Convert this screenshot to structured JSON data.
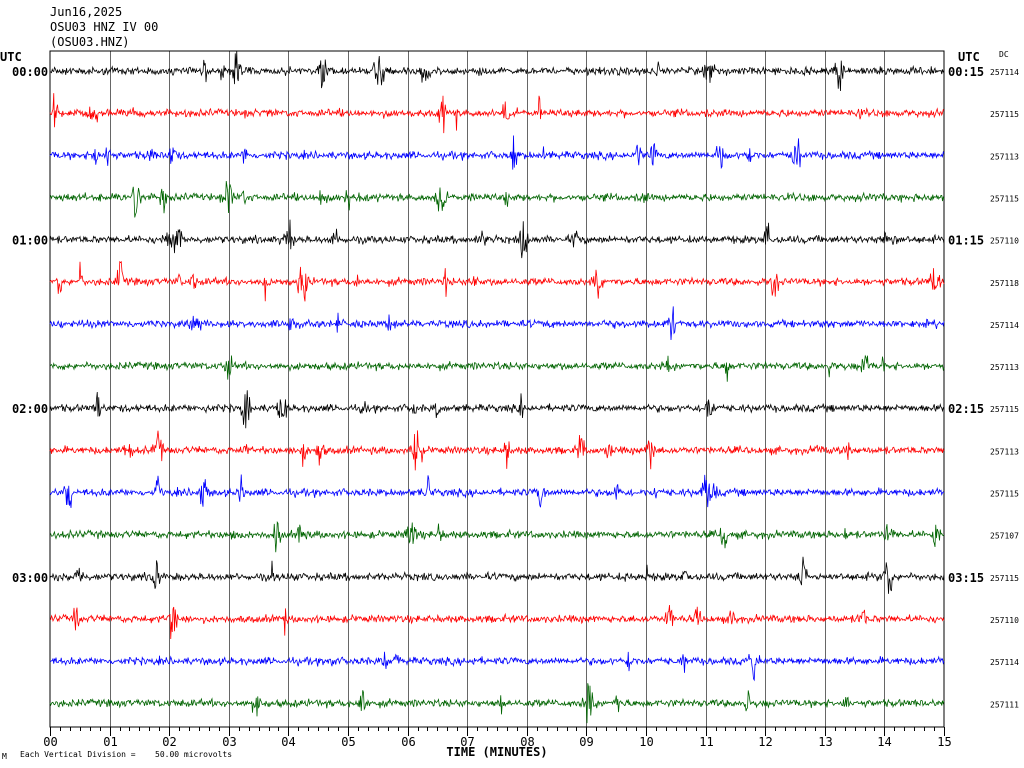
{
  "header": {
    "date": "Jun16,2025",
    "station": "OSU03 HNZ IV 00",
    "channel": "(OSU03.HNZ)"
  },
  "utc_left_label": "UTC",
  "utc_right_label": "UTC",
  "dc_label": "DC",
  "footer": {
    "mark": "M",
    "scale_text": "Each Vertical Division =",
    "scale_value": "50.00 microvolts"
  },
  "colors": {
    "palette": [
      "#000000",
      "#ff0000",
      "#0000ff",
      "#006400"
    ],
    "grid": "#000000"
  },
  "chart_data": {
    "type": "line",
    "title": "",
    "xlabel": "TIME (MINUTES)",
    "ylabel": "",
    "xlim": [
      0,
      15
    ],
    "x_ticks": [
      "00",
      "01",
      "02",
      "03",
      "04",
      "05",
      "06",
      "07",
      "08",
      "09",
      "10",
      "11",
      "12",
      "13",
      "14",
      "15"
    ],
    "grid": true,
    "left_time_labels": [
      "00:00",
      "01:00",
      "02:00",
      "03:00"
    ],
    "right_time_labels": [
      "00:15",
      "01:15",
      "02:15",
      "03:15"
    ],
    "series": [
      {
        "dc": "257114"
      },
      {
        "dc": "257115"
      },
      {
        "dc": "257113"
      },
      {
        "dc": "257115"
      },
      {
        "dc": "257110"
      },
      {
        "dc": "257118"
      },
      {
        "dc": "257114"
      },
      {
        "dc": "257113"
      },
      {
        "dc": "257115"
      },
      {
        "dc": "257113"
      },
      {
        "dc": "257115"
      },
      {
        "dc": "257107"
      },
      {
        "dc": "257115"
      },
      {
        "dc": "257110"
      },
      {
        "dc": "257114"
      },
      {
        "dc": "257111"
      }
    ]
  }
}
